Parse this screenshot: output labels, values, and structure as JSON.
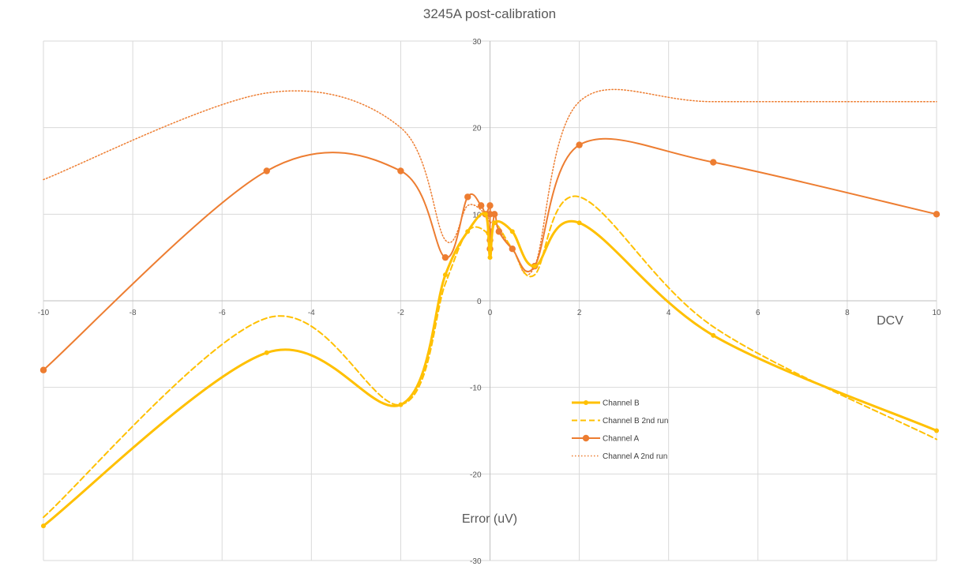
{
  "chart_data": {
    "type": "scatter",
    "title": "3245A post-calibration",
    "xlabel": "DCV",
    "ylabel": "Error (uV)",
    "xlim": [
      -10,
      10
    ],
    "ylim": [
      -30,
      30
    ],
    "x_ticks": [
      "-10",
      "-8",
      "-6",
      "-4",
      "-2",
      "0",
      "2",
      "4",
      "6",
      "8",
      "10"
    ],
    "y_ticks": [
      "30",
      "20",
      "10",
      "0",
      "-10",
      "-20",
      "-30"
    ],
    "grid": true,
    "legend_position": "center-right",
    "series": [
      {
        "name": "Channel B",
        "color": "#FFC000",
        "line": "solid-thick",
        "markers": true,
        "points": [
          [
            -10,
            -26
          ],
          [
            -5,
            -6
          ],
          [
            -2,
            -12
          ],
          [
            -1,
            3
          ],
          [
            -0.5,
            8
          ],
          [
            -0.1,
            10
          ],
          [
            0,
            5
          ],
          [
            0.1,
            9
          ],
          [
            0.5,
            8
          ],
          [
            1,
            4
          ],
          [
            2,
            9
          ],
          [
            5,
            -4
          ],
          [
            10,
            -15
          ]
        ]
      },
      {
        "name": "Channel B 2nd run",
        "color": "#FFC000",
        "line": "dashed",
        "markers": false,
        "points": [
          [
            -10,
            -25
          ],
          [
            -5,
            -2
          ],
          [
            -2,
            -12
          ],
          [
            -1,
            2
          ],
          [
            -0.5,
            8
          ],
          [
            -0.1,
            8
          ],
          [
            0,
            6
          ],
          [
            0.1,
            9
          ],
          [
            0.5,
            6
          ],
          [
            1,
            3
          ],
          [
            2,
            12
          ],
          [
            5,
            -3
          ],
          [
            10,
            -16
          ]
        ]
      },
      {
        "name": "Channel A",
        "color": "#ED7D31",
        "line": "solid",
        "markers": true,
        "points": [
          [
            -10,
            -8
          ],
          [
            -5,
            15
          ],
          [
            -2,
            15
          ],
          [
            -1,
            5
          ],
          [
            -0.5,
            12
          ],
          [
            -0.2,
            11
          ],
          [
            -0.1,
            10
          ],
          [
            0,
            11
          ],
          [
            0,
            10
          ],
          [
            0,
            8
          ],
          [
            0,
            7
          ],
          [
            0,
            6
          ],
          [
            0.1,
            10
          ],
          [
            0.2,
            8
          ],
          [
            0.5,
            6
          ],
          [
            1,
            4
          ],
          [
            2,
            18
          ],
          [
            5,
            16
          ],
          [
            10,
            10
          ]
        ]
      },
      {
        "name": "Channel A 2nd run",
        "color": "#ED7D31",
        "line": "dotted",
        "markers": false,
        "points": [
          [
            -10,
            14
          ],
          [
            -5,
            24
          ],
          [
            -2,
            20
          ],
          [
            -1,
            7
          ],
          [
            -0.5,
            11
          ],
          [
            -0.1,
            10
          ],
          [
            0,
            9
          ],
          [
            0.1,
            9
          ],
          [
            0.5,
            6
          ],
          [
            1,
            4
          ],
          [
            2,
            23
          ],
          [
            5,
            23
          ],
          [
            10,
            23
          ]
        ]
      }
    ]
  }
}
